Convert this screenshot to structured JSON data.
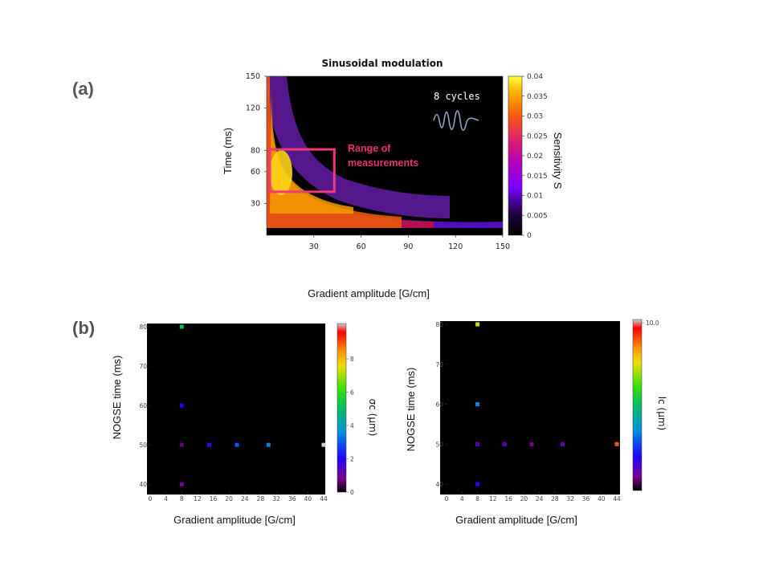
{
  "panel_a_label": "(a)",
  "panel_b_label": "(b)",
  "chart_data": [
    {
      "type": "heatmap",
      "title": "Sinusoidal modulation",
      "xlabel": "Gradient amplitude [G/cm]",
      "ylabel": "Time (ms)",
      "xlim": [
        0,
        150
      ],
      "ylim": [
        0,
        150
      ],
      "x_ticks": [
        30,
        60,
        90,
        120,
        150
      ],
      "y_ticks": [
        30,
        60,
        80,
        120,
        150
      ],
      "colorbar_label": "Sensitivity S",
      "colorbar_range": [
        0,
        0.04
      ],
      "colorbar_ticks": [
        "0.04",
        "0.035",
        "0.03",
        "0.025",
        "0.02",
        "0.015",
        "0.01",
        "0.005",
        "0"
      ],
      "cycles_label": "8 cycles",
      "range_box": {
        "x": [
          0,
          43
        ],
        "y": [
          41,
          81
        ]
      },
      "range_annotation": [
        "Range of",
        "measurements"
      ]
    },
    {
      "type": "scatter",
      "xlabel": "Gradient amplitude [G/cm]",
      "ylabel": "NOGSE time (ms)",
      "xlim": [
        0,
        44
      ],
      "ylim": [
        38,
        80
      ],
      "x_ticks": [
        "0",
        "4",
        "8",
        "12",
        "16",
        "20",
        "24",
        "28",
        "32",
        "36",
        "40",
        "44"
      ],
      "y_ticks": [
        "40",
        "50",
        "60",
        "70",
        "80"
      ],
      "colorbar_label": "σc (μm)",
      "colorbar_range": [
        0,
        9.5
      ],
      "colorbar_ticks": [
        "0",
        "2",
        "4",
        "6",
        "8"
      ],
      "points": [
        {
          "x": 8,
          "y": 80,
          "c": 4.8
        },
        {
          "x": 8,
          "y": 60,
          "c": 1.8
        },
        {
          "x": 8,
          "y": 50,
          "c": 0.6
        },
        {
          "x": 8,
          "y": 40,
          "c": 0.8
        },
        {
          "x": 15,
          "y": 50,
          "c": 2.0
        },
        {
          "x": 22,
          "y": 50,
          "c": 2.8
        },
        {
          "x": 30,
          "y": 50,
          "c": 3.2
        },
        {
          "x": 44,
          "y": 50,
          "c": 9.5
        }
      ]
    },
    {
      "type": "scatter",
      "xlabel": "Gradient amplitude [G/cm]",
      "ylabel": "NOGSE time (ms)",
      "xlim": [
        0,
        44
      ],
      "ylim": [
        38,
        80
      ],
      "x_ticks": [
        "0",
        "4",
        "8",
        "12",
        "16",
        "20",
        "24",
        "28",
        "32",
        "36",
        "40",
        "44"
      ],
      "y_ticks": [
        "40",
        "50",
        "60",
        "70",
        "80"
      ],
      "colorbar_label": "lc (μm)",
      "colorbar_range": [
        0,
        10.0
      ],
      "colorbar_ticks": [
        "10.0"
      ],
      "points": [
        {
          "x": 8,
          "y": 80,
          "c": 7.2
        },
        {
          "x": 8,
          "y": 60,
          "c": 3.4
        },
        {
          "x": 8,
          "y": 50,
          "c": 1.2
        },
        {
          "x": 8,
          "y": 40,
          "c": 2.0
        },
        {
          "x": 15,
          "y": 50,
          "c": 1.3
        },
        {
          "x": 22,
          "y": 50,
          "c": 0.8
        },
        {
          "x": 30,
          "y": 50,
          "c": 1.0
        },
        {
          "x": 44,
          "y": 50,
          "c": 8.8
        }
      ]
    }
  ]
}
